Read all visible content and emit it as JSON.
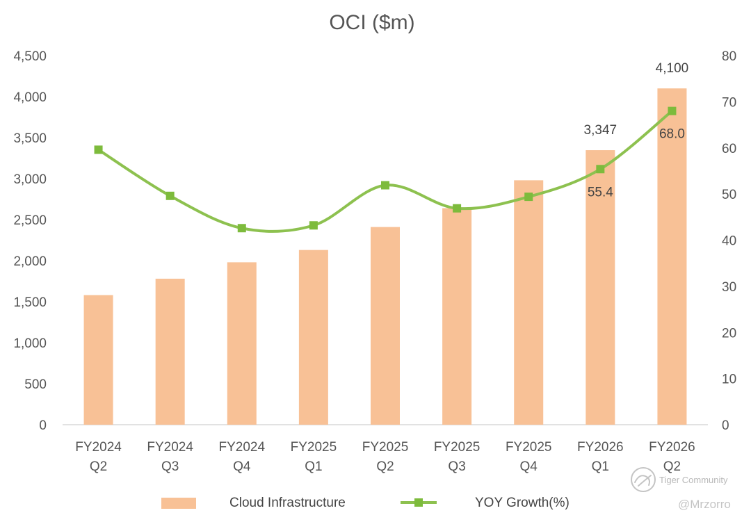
{
  "chart_data": {
    "type": "bar",
    "title": "OCI ($m)",
    "categories": [
      [
        "FY2024",
        "Q2"
      ],
      [
        "FY2024",
        "Q3"
      ],
      [
        "FY2024",
        "Q4"
      ],
      [
        "FY2025",
        "Q1"
      ],
      [
        "FY2025",
        "Q2"
      ],
      [
        "FY2025",
        "Q3"
      ],
      [
        "FY2025",
        "Q4"
      ],
      [
        "FY2026",
        "Q1"
      ],
      [
        "FY2026",
        "Q2"
      ]
    ],
    "series": [
      {
        "name": "Cloud Infrastructure",
        "type": "bar",
        "axis": "left",
        "color": "#F8C196",
        "values": [
          1580,
          1780,
          1980,
          2130,
          2410,
          2640,
          2980,
          3347,
          4100
        ],
        "data_labels": [
          "",
          "",
          "",
          "",
          "",
          "",
          "",
          "3,347",
          "4,100"
        ]
      },
      {
        "name": "YOY Growth(%)",
        "type": "line",
        "smooth": true,
        "axis": "right",
        "color": "#8DC14F",
        "marker_color": "#7DBB3C",
        "values": [
          59.6,
          49.6,
          42.6,
          43.2,
          51.9,
          46.9,
          49.4,
          55.4,
          68.0
        ],
        "data_labels": [
          "",
          "",
          "",
          "",
          "",
          "",
          "",
          "55.4",
          "68.0"
        ]
      }
    ],
    "y_left": {
      "range": [
        0,
        4500
      ],
      "ticks": [
        0,
        500,
        1000,
        1500,
        2000,
        2500,
        3000,
        3500,
        4000,
        4500
      ],
      "tick_labels": [
        "0",
        "500",
        "1,000",
        "1,500",
        "2,000",
        "2,500",
        "3,000",
        "3,500",
        "4,000",
        "4,500"
      ]
    },
    "y_right": {
      "range": [
        0,
        80
      ],
      "ticks": [
        0,
        10,
        20,
        30,
        40,
        50,
        60,
        70,
        80
      ],
      "tick_labels": [
        "0",
        "10",
        "20",
        "30",
        "40",
        "50",
        "60",
        "70",
        "80"
      ]
    },
    "grid": false,
    "legend": "bottom",
    "axis_color": "#d9d9d9"
  },
  "watermark": {
    "brand": "Tiger Community",
    "handle": "@Mrzorro",
    "icon": "tiger-community-logo-icon"
  }
}
